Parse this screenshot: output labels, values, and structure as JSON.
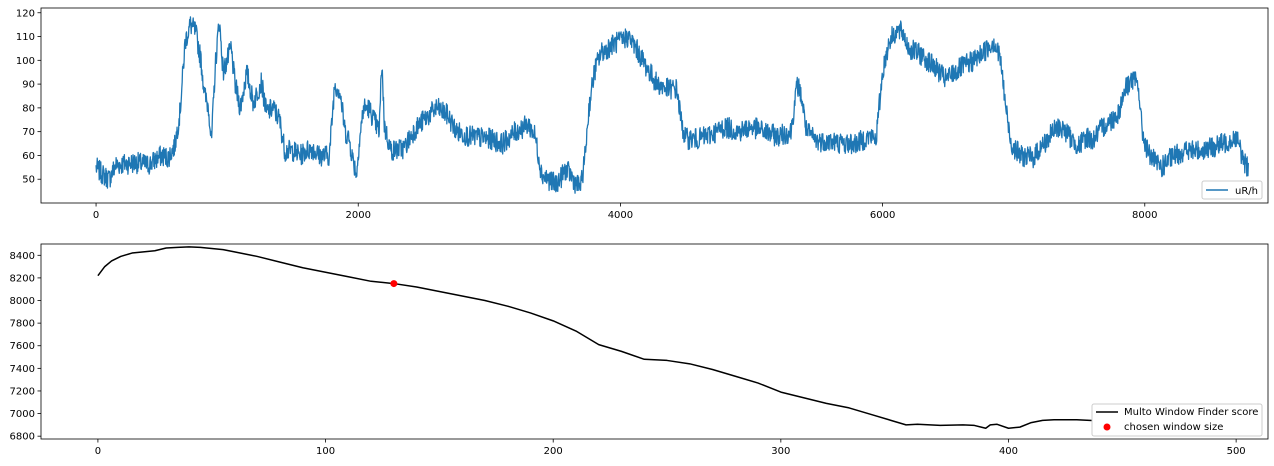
{
  "chart_data": [
    {
      "type": "line",
      "title": "",
      "xlabel": "",
      "ylabel": "",
      "xlim": [
        -420,
        8940
      ],
      "ylim": [
        40,
        122
      ],
      "x_ticks": [
        0,
        2000,
        4000,
        6000,
        8000
      ],
      "y_ticks": [
        50,
        60,
        70,
        80,
        90,
        100,
        110,
        120
      ],
      "legend_position": "lower-right",
      "series": [
        {
          "name": "uR/h",
          "color": "#1f77b4",
          "keypoints": [
            [
              0,
              55
            ],
            [
              50,
              52
            ],
            [
              100,
              50
            ],
            [
              150,
              56
            ],
            [
              300,
              57
            ],
            [
              400,
              56
            ],
            [
              500,
              60
            ],
            [
              550,
              59
            ],
            [
              600,
              64
            ],
            [
              640,
              78
            ],
            [
              680,
              108
            ],
            [
              720,
              115
            ],
            [
              760,
              112
            ],
            [
              800,
              100
            ],
            [
              830,
              85
            ],
            [
              860,
              80
            ],
            [
              880,
              65
            ],
            [
              910,
              98
            ],
            [
              940,
              117
            ],
            [
              970,
              95
            ],
            [
              1000,
              100
            ],
            [
              1030,
              105
            ],
            [
              1060,
              90
            ],
            [
              1100,
              80
            ],
            [
              1150,
              95
            ],
            [
              1200,
              82
            ],
            [
              1260,
              91
            ],
            [
              1300,
              78
            ],
            [
              1350,
              80
            ],
            [
              1400,
              75
            ],
            [
              1440,
              62
            ],
            [
              1500,
              62
            ],
            [
              1560,
              60
            ],
            [
              1600,
              62
            ],
            [
              1650,
              63
            ],
            [
              1700,
              60
            ],
            [
              1780,
              60
            ],
            [
              1820,
              90
            ],
            [
              1860,
              87
            ],
            [
              1900,
              70
            ],
            [
              1930,
              67
            ],
            [
              1960,
              58
            ],
            [
              1990,
              52
            ],
            [
              2000,
              62
            ],
            [
              2040,
              80
            ],
            [
              2080,
              80
            ],
            [
              2120,
              75
            ],
            [
              2160,
              70
            ],
            [
              2180,
              100
            ],
            [
              2200,
              72
            ],
            [
              2250,
              62
            ],
            [
              2350,
              63
            ],
            [
              2420,
              70
            ],
            [
              2500,
              75
            ],
            [
              2600,
              80
            ],
            [
              2680,
              77
            ],
            [
              2750,
              70
            ],
            [
              2850,
              68
            ],
            [
              3000,
              67
            ],
            [
              3100,
              65
            ],
            [
              3200,
              70
            ],
            [
              3300,
              73
            ],
            [
              3350,
              68
            ],
            [
              3400,
              52
            ],
            [
              3450,
              50
            ],
            [
              3500,
              48
            ],
            [
              3540,
              50
            ],
            [
              3580,
              54
            ],
            [
              3620,
              52
            ],
            [
              3660,
              48
            ],
            [
              3700,
              47
            ],
            [
              3730,
              60
            ],
            [
              3760,
              80
            ],
            [
              3800,
              95
            ],
            [
              3850,
              103
            ],
            [
              3900,
              105
            ],
            [
              3950,
              107
            ],
            [
              4000,
              108
            ],
            [
              4060,
              110
            ],
            [
              4120,
              105
            ],
            [
              4200,
              97
            ],
            [
              4280,
              90
            ],
            [
              4360,
              88
            ],
            [
              4430,
              88
            ],
            [
              4470,
              72
            ],
            [
              4500,
              67
            ],
            [
              4600,
              67
            ],
            [
              4700,
              69
            ],
            [
              4800,
              72
            ],
            [
              4900,
              70
            ],
            [
              5000,
              72
            ],
            [
              5100,
              70
            ],
            [
              5200,
              68
            ],
            [
              5300,
              70
            ],
            [
              5350,
              90
            ],
            [
              5380,
              85
            ],
            [
              5420,
              70
            ],
            [
              5500,
              66
            ],
            [
              5600,
              66
            ],
            [
              5700,
              65
            ],
            [
              5800,
              65
            ],
            [
              5900,
              68
            ],
            [
              5950,
              67
            ],
            [
              6000,
              95
            ],
            [
              6050,
              108
            ],
            [
              6100,
              112
            ],
            [
              6150,
              112
            ],
            [
              6200,
              105
            ],
            [
              6300,
              102
            ],
            [
              6400,
              97
            ],
            [
              6480,
              92
            ],
            [
              6550,
              95
            ],
            [
              6600,
              97
            ],
            [
              6700,
              100
            ],
            [
              6800,
              105
            ],
            [
              6850,
              108
            ],
            [
              6900,
              100
            ],
            [
              6940,
              80
            ],
            [
              6980,
              65
            ],
            [
              7050,
              60
            ],
            [
              7150,
              59
            ],
            [
              7200,
              63
            ],
            [
              7250,
              66
            ],
            [
              7300,
              70
            ],
            [
              7350,
              72
            ],
            [
              7400,
              70
            ],
            [
              7450,
              66
            ],
            [
              7500,
              64
            ],
            [
              7560,
              68
            ],
            [
              7600,
              66
            ],
            [
              7650,
              70
            ],
            [
              7700,
              73
            ],
            [
              7750,
              75
            ],
            [
              7800,
              78
            ],
            [
              7850,
              88
            ],
            [
              7900,
              92
            ],
            [
              7950,
              90
            ],
            [
              7980,
              70
            ],
            [
              8020,
              62
            ],
            [
              8080,
              57
            ],
            [
              8130,
              55
            ],
            [
              8200,
              59
            ],
            [
              8300,
              62
            ],
            [
              8400,
              62
            ],
            [
              8500,
              63
            ],
            [
              8600,
              65
            ],
            [
              8700,
              68
            ],
            [
              8740,
              60
            ],
            [
              8780,
              55
            ],
            [
              8790,
              56
            ]
          ]
        }
      ]
    },
    {
      "type": "line",
      "title": "",
      "xlabel": "",
      "ylabel": "",
      "xlim": [
        -25,
        514
      ],
      "ylim": [
        6775,
        8500
      ],
      "x_ticks": [
        0,
        100,
        200,
        300,
        400,
        500
      ],
      "y_ticks": [
        6800,
        7000,
        7200,
        7400,
        7600,
        7800,
        8000,
        8200,
        8400
      ],
      "legend_position": "lower-right",
      "series": [
        {
          "name": "Multo Window Finder score",
          "color": "#000000",
          "x": [
            0,
            3,
            6,
            10,
            15,
            20,
            25,
            30,
            35,
            40,
            45,
            50,
            55,
            60,
            70,
            80,
            90,
            100,
            110,
            120,
            130,
            140,
            150,
            160,
            170,
            180,
            190,
            200,
            210,
            220,
            230,
            240,
            250,
            260,
            270,
            280,
            290,
            300,
            310,
            320,
            330,
            340,
            350,
            355,
            360,
            370,
            380,
            385,
            388,
            390,
            392,
            395,
            400,
            405,
            410,
            415,
            420,
            430,
            440,
            450,
            460,
            470,
            480
          ],
          "y": [
            8220,
            8300,
            8350,
            8390,
            8420,
            8430,
            8440,
            8465,
            8470,
            8475,
            8470,
            8460,
            8450,
            8430,
            8390,
            8340,
            8290,
            8250,
            8210,
            8170,
            8150,
            8120,
            8080,
            8040,
            8000,
            7950,
            7890,
            7820,
            7730,
            7610,
            7550,
            7480,
            7470,
            7440,
            7390,
            7330,
            7270,
            7190,
            7140,
            7090,
            7050,
            6990,
            6930,
            6900,
            6905,
            6895,
            6900,
            6895,
            6880,
            6870,
            6900,
            6905,
            6870,
            6880,
            6920,
            6940,
            6945,
            6945,
            6935,
            6900,
            6880,
            6870,
            6870
          ]
        },
        {
          "name": "chosen window size",
          "color": "#ff0000",
          "x": [
            130
          ],
          "y": [
            8150
          ]
        }
      ]
    }
  ]
}
